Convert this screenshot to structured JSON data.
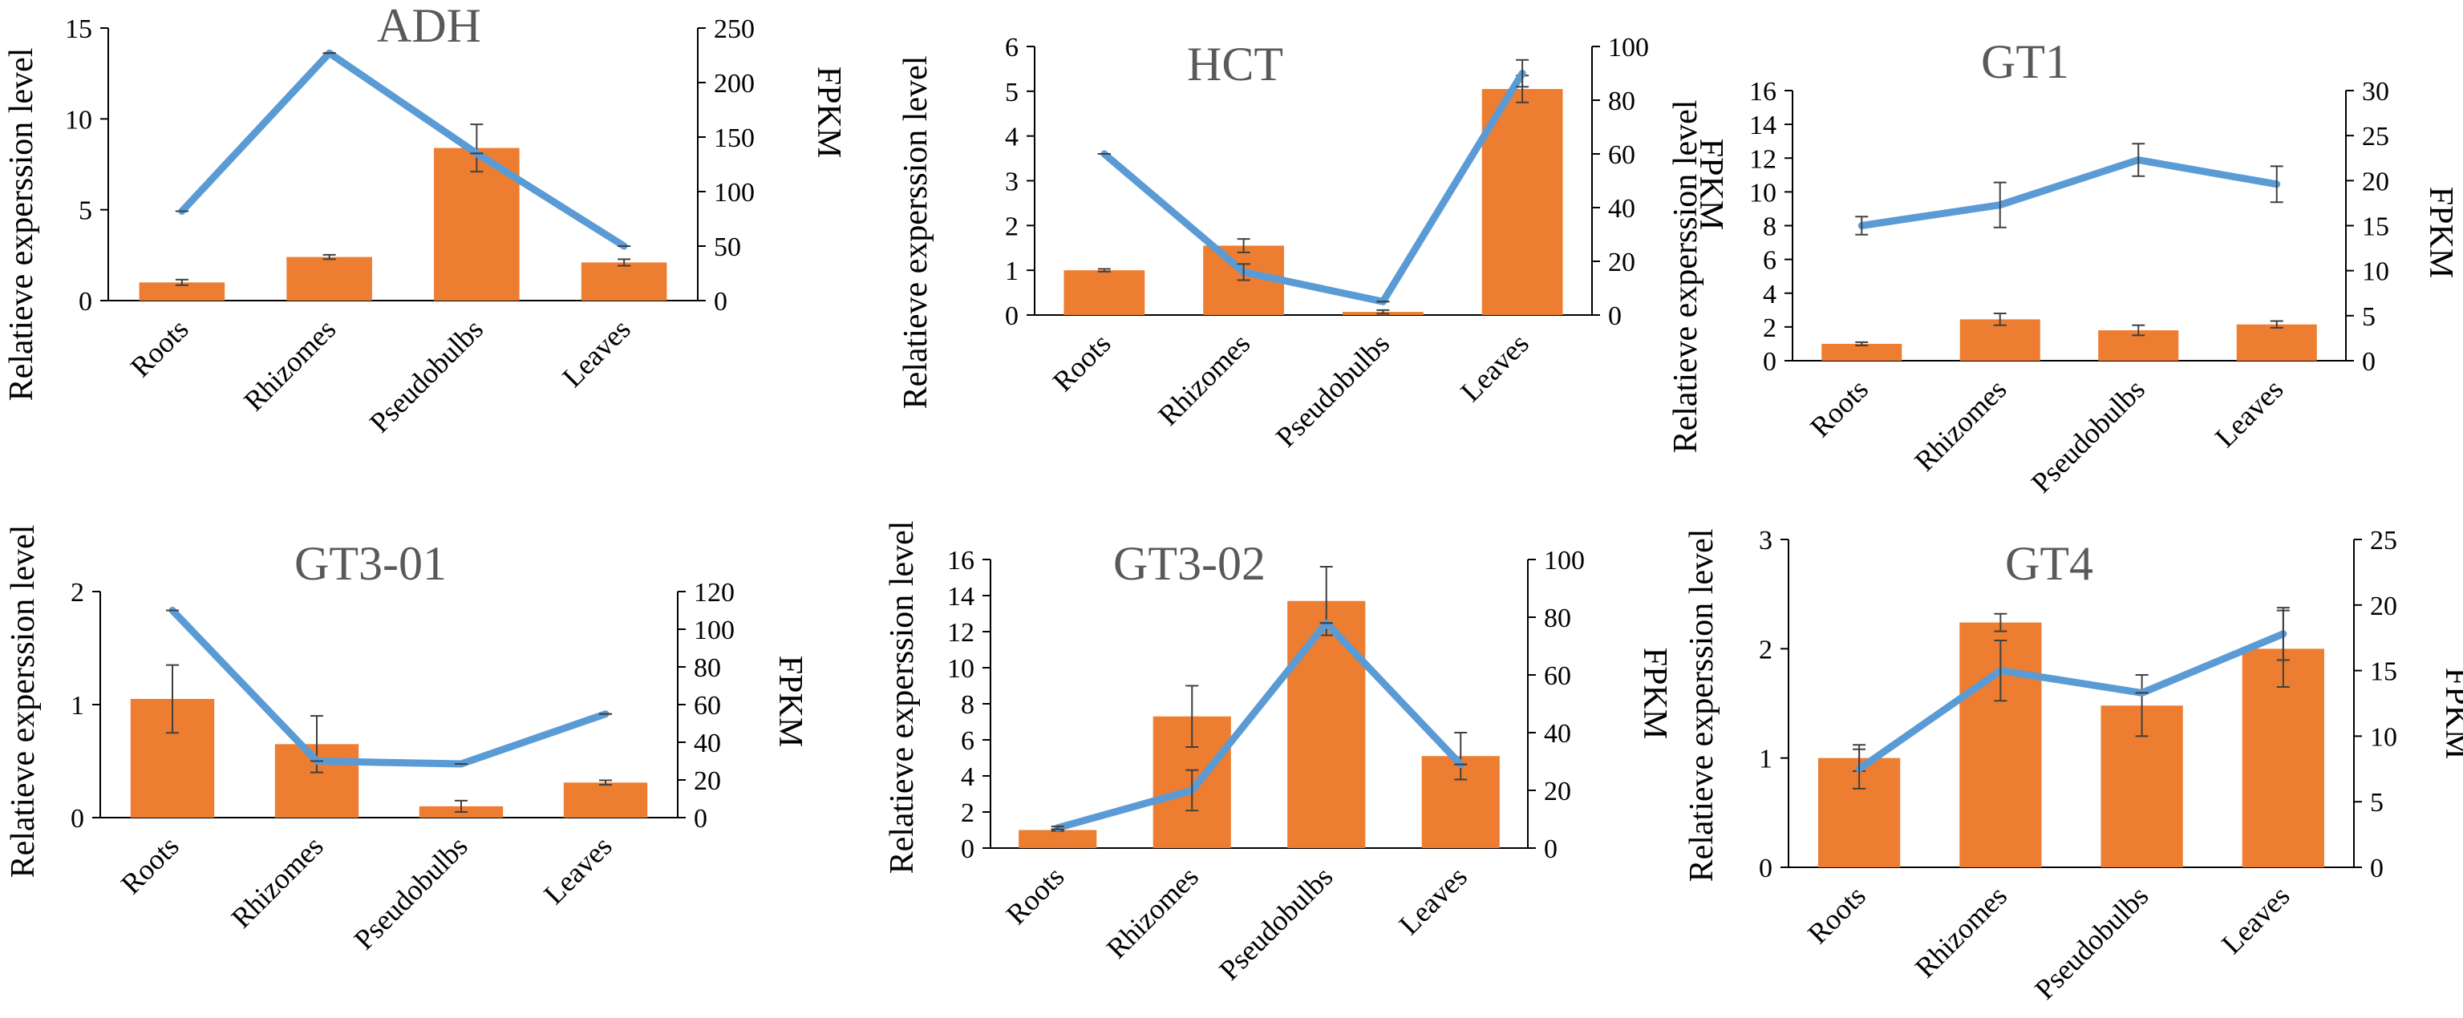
{
  "colors": {
    "bar": "#ED7D31",
    "line": "#5B9BD5",
    "error": "#404040",
    "title": "#595959"
  },
  "chart_data": [
    {
      "type": "bar",
      "title": "ADH",
      "categories": [
        "Roots",
        "Rhizomes",
        "Pseudobulbs",
        "Leaves"
      ],
      "ylabel": "Relatieve experssion level",
      "y2label": "FPKM",
      "ylim": [
        0,
        15
      ],
      "yticks": [
        0,
        5,
        10,
        15
      ],
      "y2lim": [
        0,
        250
      ],
      "y2ticks": [
        0,
        50,
        100,
        150,
        200,
        250
      ],
      "series": [
        {
          "name": "Relative expression",
          "kind": "bar",
          "axis": "left",
          "values": [
            1.0,
            2.4,
            8.4,
            2.1
          ],
          "errors": [
            0.15,
            0.12,
            1.3,
            0.18
          ]
        },
        {
          "name": "FPKM",
          "kind": "line",
          "axis": "right",
          "values": [
            82,
            227,
            135,
            50
          ],
          "errors": [
            0,
            0,
            0,
            0
          ]
        }
      ]
    },
    {
      "type": "bar",
      "title": "HCT",
      "categories": [
        "Roots",
        "Rhizomes",
        "Pseudobulbs",
        "Leaves"
      ],
      "ylabel": "Relatieve experssion level",
      "y2label": "FPKM",
      "ylim": [
        0,
        6
      ],
      "yticks": [
        0,
        1,
        2,
        3,
        4,
        5,
        6
      ],
      "y2lim": [
        0,
        100
      ],
      "y2ticks": [
        0,
        20,
        40,
        60,
        80,
        100
      ],
      "series": [
        {
          "name": "Relative expression",
          "kind": "bar",
          "axis": "left",
          "values": [
            1.0,
            1.55,
            0.07,
            5.05
          ],
          "errors": [
            0.03,
            0.15,
            0.04,
            0.3
          ]
        },
        {
          "name": "FPKM",
          "kind": "line",
          "axis": "right",
          "values": [
            60,
            16,
            5,
            90
          ],
          "errors": [
            0,
            3,
            0,
            5
          ]
        }
      ]
    },
    {
      "type": "bar",
      "title": "GT1",
      "categories": [
        "Roots",
        "Rhizomes",
        "Pseudobulbs",
        "Leaves"
      ],
      "ylabel": "Relatieve experssion level",
      "y2label": "FPKM",
      "ylim": [
        0,
        16
      ],
      "yticks": [
        0,
        2,
        4,
        6,
        8,
        10,
        12,
        14,
        16
      ],
      "y2lim": [
        0,
        30
      ],
      "y2ticks": [
        0,
        5,
        10,
        15,
        20,
        25,
        30
      ],
      "series": [
        {
          "name": "Relative expression",
          "kind": "bar",
          "axis": "left",
          "values": [
            1.0,
            2.45,
            1.8,
            2.15
          ],
          "errors": [
            0.1,
            0.35,
            0.3,
            0.2
          ]
        },
        {
          "name": "FPKM",
          "kind": "line",
          "axis": "right",
          "values": [
            15,
            17.3,
            22.3,
            19.6
          ],
          "errors": [
            1,
            2.5,
            1.8,
            2
          ]
        }
      ]
    },
    {
      "type": "bar",
      "title": "GT3-01",
      "categories": [
        "Roots",
        "Rhizomes",
        "Pseudobulbs",
        "Leaves"
      ],
      "ylabel": "Relatieve experssion level",
      "y2label": "FPKM",
      "ylim": [
        0,
        2
      ],
      "yticks": [
        0,
        1,
        2
      ],
      "y2lim": [
        0,
        120
      ],
      "y2ticks": [
        0,
        20,
        40,
        60,
        80,
        100,
        120
      ],
      "series": [
        {
          "name": "Relative expression",
          "kind": "bar",
          "axis": "left",
          "values": [
            1.05,
            0.65,
            0.1,
            0.31
          ],
          "errors": [
            0.3,
            0.25,
            0.05,
            0.02
          ]
        },
        {
          "name": "FPKM",
          "kind": "line",
          "axis": "right",
          "values": [
            110,
            30,
            28.5,
            55
          ],
          "errors": [
            0,
            0,
            0,
            0
          ]
        }
      ]
    },
    {
      "type": "bar",
      "title": "GT3-02",
      "categories": [
        "Roots",
        "Rhizomes",
        "Pseudobulbs",
        "Leaves"
      ],
      "ylabel": "Relatieve experssion level",
      "y2label": "FPKM",
      "ylim": [
        0,
        16
      ],
      "yticks": [
        0,
        2,
        4,
        6,
        8,
        10,
        12,
        14,
        16
      ],
      "y2lim": [
        0,
        100
      ],
      "y2ticks": [
        0,
        20,
        40,
        60,
        80,
        100
      ],
      "series": [
        {
          "name": "Relative expression",
          "kind": "bar",
          "axis": "left",
          "values": [
            1.0,
            7.3,
            13.7,
            5.1
          ],
          "errors": [
            0.05,
            1.7,
            1.9,
            1.3
          ]
        },
        {
          "name": "FPKM",
          "kind": "line",
          "axis": "right",
          "values": [
            7,
            20,
            78,
            29
          ],
          "errors": [
            0.5,
            7,
            0,
            0
          ]
        }
      ]
    },
    {
      "type": "bar",
      "title": "GT4",
      "categories": [
        "Roots",
        "Rhizomes",
        "Pseudobulbs",
        "Leaves"
      ],
      "ylabel": "Relatieve experssion level",
      "y2label": "FPKM",
      "ylim": [
        0,
        3
      ],
      "yticks": [
        0,
        1,
        2,
        3
      ],
      "y2lim": [
        0,
        25
      ],
      "y2ticks": [
        0,
        5,
        10,
        15,
        20,
        25
      ],
      "series": [
        {
          "name": "Relative expression",
          "kind": "bar",
          "axis": "left",
          "values": [
            1.0,
            2.24,
            1.48,
            2.0
          ],
          "errors": [
            0.12,
            0.08,
            0.28,
            0.35
          ]
        },
        {
          "name": "FPKM",
          "kind": "line",
          "axis": "right",
          "values": [
            7.5,
            15,
            13.3,
            17.8
          ],
          "errors": [
            1.5,
            2.3,
            0,
            2
          ]
        }
      ]
    }
  ]
}
